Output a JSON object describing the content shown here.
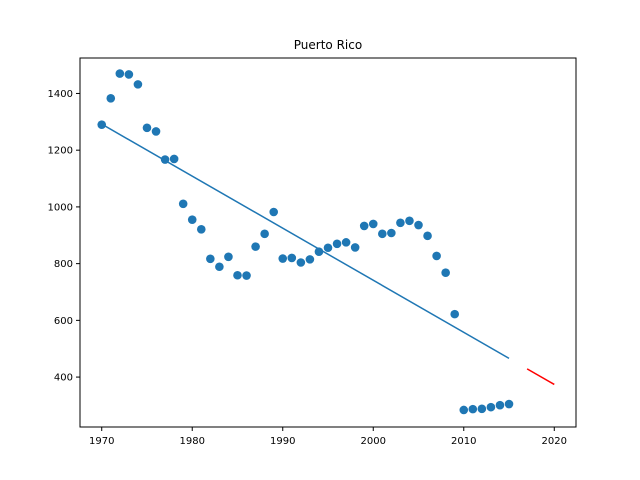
{
  "chart_data": {
    "type": "scatter",
    "title": "Puerto Rico",
    "xlabel": "",
    "ylabel": "",
    "xlim": [
      1967.6,
      2022.4
    ],
    "ylim": [
      224,
      1525
    ],
    "x_ticks": [
      1970,
      1980,
      1990,
      2000,
      2010,
      2020
    ],
    "y_ticks": [
      400,
      600,
      800,
      1000,
      1200,
      1400
    ],
    "grid": false,
    "legend": null,
    "points": {
      "color": "#1f77b4",
      "x": [
        1970,
        1971,
        1972,
        1973,
        1974,
        1975,
        1976,
        1977,
        1978,
        1979,
        1980,
        1981,
        1982,
        1983,
        1984,
        1985,
        1986,
        1987,
        1988,
        1989,
        1990,
        1991,
        1992,
        1993,
        1994,
        1995,
        1996,
        1997,
        1998,
        1999,
        2000,
        2001,
        2002,
        2003,
        2004,
        2005,
        2006,
        2007,
        2008,
        2009,
        2010,
        2011,
        2012,
        2013,
        2014,
        2015
      ],
      "y": [
        1290,
        1383,
        1470,
        1467,
        1432,
        1279,
        1266,
        1167,
        1169,
        1011,
        955,
        921,
        817,
        789,
        824,
        759,
        758,
        860,
        905,
        982,
        818,
        820,
        804,
        815,
        842,
        856,
        870,
        875,
        857,
        933,
        940,
        905,
        908,
        944,
        951,
        936,
        898,
        827,
        768,
        622,
        284,
        287,
        288,
        294,
        301,
        305
      ]
    },
    "fit_line": {
      "color": "#1f77b4",
      "x": [
        1970,
        2015
      ],
      "y": [
        1292,
        466
      ]
    },
    "projection_line": {
      "color": "#ff0000",
      "x": [
        2017,
        2020
      ],
      "y": [
        429,
        374
      ]
    }
  }
}
